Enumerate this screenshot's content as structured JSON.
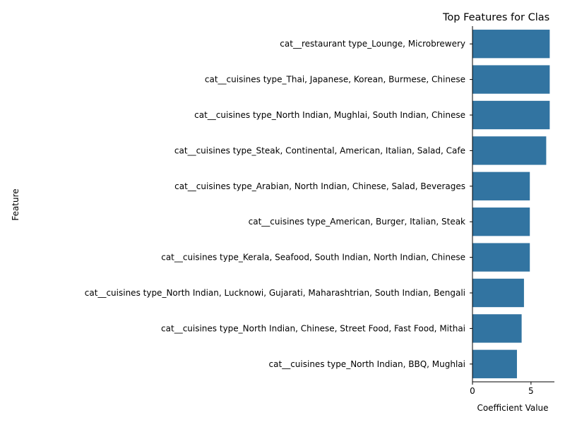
{
  "chart_data": {
    "type": "bar",
    "orientation": "horizontal",
    "title": "Top Features for Clas",
    "xlabel": "Coefficient Value",
    "ylabel": "Feature",
    "xlim": [
      0,
      7
    ],
    "xticks": [
      0,
      5
    ],
    "grid": false,
    "bar_color": "#3274a1",
    "categories": [
      "cat__restaurant type_Lounge, Microbrewery",
      "cat__cuisines type_Thai, Japanese, Korean, Burmese, Chinese",
      "cat__cuisines type_North Indian, Mughlai, South Indian, Chinese",
      "cat__cuisines type_Steak, Continental, American, Italian, Salad, Cafe",
      "cat__cuisines type_Arabian, North Indian, Chinese, Salad, Beverages",
      "cat__cuisines type_American, Burger, Italian, Steak",
      "cat__cuisines type_Kerala, Seafood, South Indian, North Indian, Chinese",
      "cat__cuisines type_North Indian, Lucknowi, Gujarati, Maharashtrian, South Indian, Bengali",
      "cat__cuisines type_North Indian, Chinese, Street Food, Fast Food, Mithai",
      "cat__cuisines type_North Indian, BBQ, Mughlai"
    ],
    "values": [
      6.6,
      6.6,
      6.6,
      6.3,
      4.9,
      4.9,
      4.9,
      4.4,
      4.2,
      3.8
    ]
  }
}
